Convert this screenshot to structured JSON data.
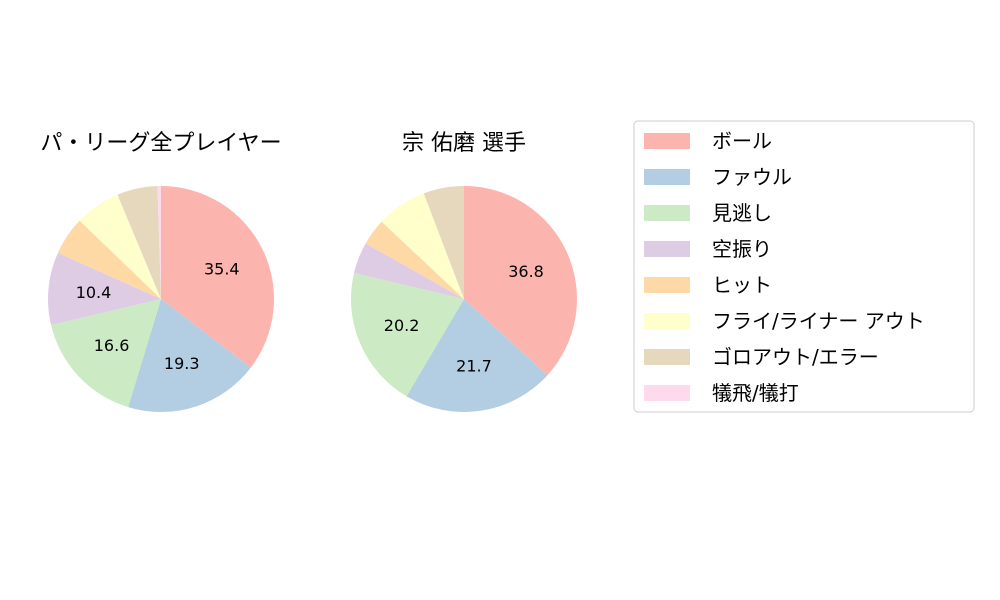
{
  "chart_data": [
    {
      "type": "pie",
      "title": "パ・リーグ全プレイヤー",
      "categories": [
        "ボール",
        "ファウル",
        "見逃し",
        "空振り",
        "ヒット",
        "フライ/ライナー アウト",
        "ゴロアウト/エラー",
        "犠飛/犠打"
      ],
      "values": [
        35.4,
        19.3,
        16.6,
        10.4,
        5.5,
        6.5,
        5.8,
        0.5
      ],
      "shown_labels": [
        "35.4",
        "19.3",
        "16.6",
        "10.4",
        "",
        "",
        "",
        ""
      ]
    },
    {
      "type": "pie",
      "title": "宗 佑磨  選手",
      "categories": [
        "ボール",
        "ファウル",
        "見逃し",
        "空振り",
        "ヒット",
        "フライ/ライナー アウト",
        "ゴロアウト/エラー",
        "犠飛/犠打"
      ],
      "values": [
        36.8,
        21.7,
        20.2,
        4.5,
        3.8,
        7.2,
        5.8,
        0.0
      ],
      "shown_labels": [
        "36.8",
        "21.7",
        "20.2",
        "",
        "",
        "",
        "",
        ""
      ]
    }
  ],
  "legend": {
    "position": "right",
    "items": [
      {
        "label": "ボール",
        "color": "#fbb4ae"
      },
      {
        "label": "ファウル",
        "color": "#b3cde3"
      },
      {
        "label": "見逃し",
        "color": "#ccebc5"
      },
      {
        "label": "空振り",
        "color": "#decbe4"
      },
      {
        "label": "ヒット",
        "color": "#fed9a6"
      },
      {
        "label": "フライ/ライナー アウト",
        "color": "#ffffcc"
      },
      {
        "label": "ゴロアウト/エラー",
        "color": "#e5d8bd"
      },
      {
        "label": "犠飛/犠打",
        "color": "#fddaec"
      }
    ]
  }
}
